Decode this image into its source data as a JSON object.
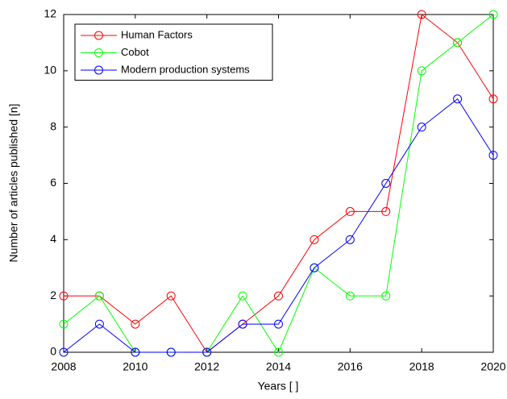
{
  "chart_data": {
    "type": "line",
    "x_label": "Years [ ]",
    "y_label": "Number of articles published [n]",
    "x": [
      2008,
      2009,
      2010,
      2011,
      2012,
      2013,
      2014,
      2015,
      2016,
      2017,
      2018,
      2019,
      2020
    ],
    "series": [
      {
        "name": "Human Factors",
        "color": "#ff0000",
        "values": [
          2,
          2,
          1,
          2,
          0,
          1,
          2,
          4,
          5,
          5,
          12,
          11,
          9
        ]
      },
      {
        "name": "Cobot",
        "color": "#00ff00",
        "values": [
          1,
          2,
          0,
          0,
          0,
          2,
          0,
          3,
          2,
          2,
          10,
          11,
          12
        ]
      },
      {
        "name": "Modern production systems",
        "color": "#0000ff",
        "values": [
          0,
          1,
          0,
          0,
          0,
          1,
          1,
          3,
          4,
          6,
          8,
          9,
          7
        ]
      }
    ],
    "xlim": [
      2008,
      2020
    ],
    "xticks": [
      2008,
      2010,
      2012,
      2014,
      2016,
      2018,
      2020
    ],
    "ylim": [
      0,
      12
    ],
    "yticks": [
      0,
      2,
      4,
      6,
      8,
      10,
      12
    ],
    "legend": "upper left",
    "markers": "circle"
  }
}
